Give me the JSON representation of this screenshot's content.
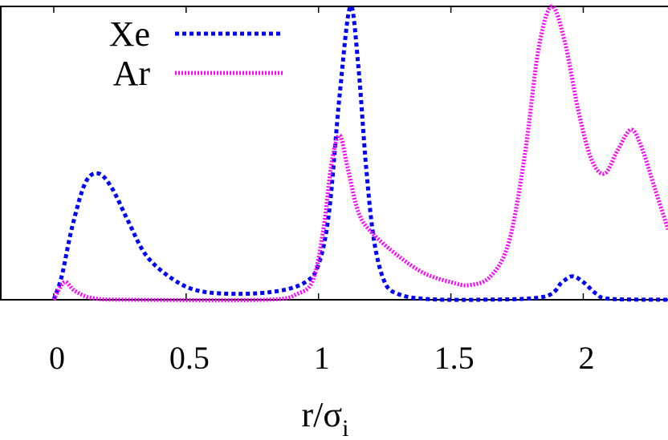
{
  "chart_data": {
    "type": "line",
    "title": "",
    "xlabel": "r/σ",
    "xlabel_subscript": "i",
    "ylabel": "",
    "xlim": [
      -0.2,
      2.32
    ],
    "ylim": [
      0,
      1
    ],
    "grid": false,
    "legend_position": "top-left",
    "x_ticks": [
      "0",
      "0.5",
      "1",
      "1.5",
      "2"
    ],
    "x_tick_values": [
      0,
      0.5,
      1,
      1.5,
      2
    ],
    "y_ticks": [],
    "series": [
      {
        "name": "Xe",
        "color": "#0000ff",
        "style": "dashed",
        "points": [
          [
            0,
            0
          ],
          [
            0.03,
            0.08
          ],
          [
            0.07,
            0.25
          ],
          [
            0.12,
            0.4
          ],
          [
            0.17,
            0.43
          ],
          [
            0.22,
            0.38
          ],
          [
            0.28,
            0.27
          ],
          [
            0.35,
            0.15
          ],
          [
            0.45,
            0.07
          ],
          [
            0.55,
            0.03
          ],
          [
            0.7,
            0.02
          ],
          [
            0.85,
            0.03
          ],
          [
            0.95,
            0.06
          ],
          [
            1.0,
            0.12
          ],
          [
            1.04,
            0.3
          ],
          [
            1.08,
            0.7
          ],
          [
            1.12,
            1.0
          ],
          [
            1.15,
            0.8
          ],
          [
            1.18,
            0.45
          ],
          [
            1.21,
            0.2
          ],
          [
            1.25,
            0.06
          ],
          [
            1.3,
            0.02
          ],
          [
            1.4,
            0.003
          ],
          [
            1.6,
            0
          ],
          [
            1.85,
            0.01
          ],
          [
            1.92,
            0.06
          ],
          [
            1.96,
            0.08
          ],
          [
            2.0,
            0.06
          ],
          [
            2.05,
            0.02
          ],
          [
            2.1,
            0.003
          ],
          [
            2.32,
            0
          ]
        ]
      },
      {
        "name": "Ar",
        "color": "#ff00ff",
        "style": "dotted",
        "points": [
          [
            0,
            0
          ],
          [
            0.04,
            0.06
          ],
          [
            0.08,
            0.03
          ],
          [
            0.15,
            0.005
          ],
          [
            0.3,
            0
          ],
          [
            0.8,
            0
          ],
          [
            0.92,
            0.02
          ],
          [
            0.98,
            0.07
          ],
          [
            1.02,
            0.25
          ],
          [
            1.05,
            0.47
          ],
          [
            1.08,
            0.56
          ],
          [
            1.11,
            0.45
          ],
          [
            1.15,
            0.3
          ],
          [
            1.2,
            0.23
          ],
          [
            1.3,
            0.15
          ],
          [
            1.4,
            0.09
          ],
          [
            1.5,
            0.06
          ],
          [
            1.57,
            0.05
          ],
          [
            1.65,
            0.08
          ],
          [
            1.72,
            0.2
          ],
          [
            1.78,
            0.5
          ],
          [
            1.83,
            0.85
          ],
          [
            1.88,
            1.0
          ],
          [
            1.93,
            0.88
          ],
          [
            1.98,
            0.65
          ],
          [
            2.03,
            0.48
          ],
          [
            2.08,
            0.43
          ],
          [
            2.13,
            0.51
          ],
          [
            2.18,
            0.58
          ],
          [
            2.22,
            0.52
          ],
          [
            2.27,
            0.38
          ],
          [
            2.32,
            0.24
          ]
        ]
      }
    ]
  }
}
